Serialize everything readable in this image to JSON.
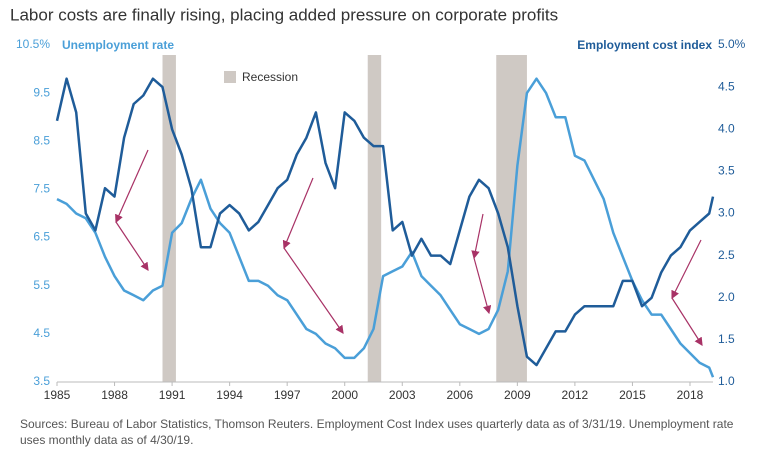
{
  "chart_data": {
    "type": "line",
    "title": "Labor costs are finally rising, placing added pressure on corporate profits",
    "y_label": "Unemployment rate",
    "y2_label": "Employment cost index",
    "legend_recession": "Recession",
    "source": "Sources: Bureau of Labor Statistics, Thomson Reuters. Employment Cost Index uses quarterly data as of 3/31/19. Unemployment rate uses monthly data as of 4/30/19.",
    "recession_color": "#cfc9c4",
    "recessions": [
      [
        1990.5,
        1991.2
      ],
      [
        2001.2,
        2001.9
      ],
      [
        2007.9,
        2009.5
      ]
    ],
    "x": [
      1985,
      1985.5,
      1986,
      1986.5,
      1987,
      1987.5,
      1988,
      1988.5,
      1989,
      1989.5,
      1990,
      1990.5,
      1991,
      1991.5,
      1992,
      1992.5,
      1993,
      1993.5,
      1994,
      1994.5,
      1995,
      1995.5,
      1996,
      1996.5,
      1997,
      1997.5,
      1998,
      1998.5,
      1999,
      1999.5,
      2000,
      2000.5,
      2001,
      2001.5,
      2002,
      2002.5,
      2003,
      2003.5,
      2004,
      2004.5,
      2005,
      2005.5,
      2006,
      2006.5,
      2007,
      2007.5,
      2008,
      2008.5,
      2009,
      2009.5,
      2010,
      2010.5,
      2011,
      2011.5,
      2012,
      2012.5,
      2013,
      2013.5,
      2014,
      2014.5,
      2015,
      2015.5,
      2016,
      2016.5,
      2017,
      2017.5,
      2018,
      2018.5,
      2019,
      2019.2
    ],
    "series": [
      {
        "name": "Unemployment rate",
        "color": "#4a9fd8",
        "values": [
          7.3,
          7.2,
          7.0,
          6.9,
          6.6,
          6.1,
          5.7,
          5.4,
          5.3,
          5.2,
          5.4,
          5.5,
          6.6,
          6.8,
          7.3,
          7.7,
          7.1,
          6.8,
          6.6,
          6.1,
          5.6,
          5.6,
          5.5,
          5.3,
          5.2,
          4.9,
          4.6,
          4.5,
          4.3,
          4.2,
          4.0,
          4.0,
          4.2,
          4.6,
          5.7,
          5.8,
          5.9,
          6.2,
          5.7,
          5.5,
          5.3,
          5.0,
          4.7,
          4.6,
          4.5,
          4.6,
          5.0,
          5.8,
          8.0,
          9.5,
          9.8,
          9.5,
          9.0,
          9.0,
          8.2,
          8.1,
          7.7,
          7.3,
          6.6,
          6.1,
          5.6,
          5.2,
          4.9,
          4.9,
          4.6,
          4.3,
          4.1,
          3.9,
          3.8,
          3.6
        ]
      },
      {
        "name": "Employment cost index",
        "color": "#1f5c99",
        "axis": "y2",
        "values": [
          4.1,
          4.6,
          4.2,
          3.0,
          2.8,
          3.3,
          3.2,
          3.9,
          4.3,
          4.4,
          4.6,
          4.5,
          4.0,
          3.7,
          3.3,
          2.6,
          2.6,
          3.0,
          3.1,
          3.0,
          2.8,
          2.9,
          3.1,
          3.3,
          3.4,
          3.7,
          3.9,
          4.2,
          3.6,
          3.3,
          4.2,
          4.1,
          3.9,
          3.8,
          3.8,
          2.8,
          2.9,
          2.5,
          2.7,
          2.5,
          2.5,
          2.4,
          2.8,
          3.2,
          3.4,
          3.3,
          3.0,
          2.6,
          1.9,
          1.3,
          1.2,
          1.4,
          1.6,
          1.6,
          1.8,
          1.9,
          1.9,
          1.9,
          1.9,
          2.2,
          2.2,
          1.9,
          2.0,
          2.3,
          2.5,
          2.6,
          2.8,
          2.9,
          3.0,
          3.2
        ]
      }
    ],
    "xlim": [
      1985,
      2019.2
    ],
    "xticks": [
      1985,
      1988,
      1991,
      1994,
      1997,
      2000,
      2003,
      2006,
      2009,
      2012,
      2015,
      2018
    ],
    "ylim": [
      3.5,
      10.5
    ],
    "yticks": [
      3.5,
      4.5,
      5.5,
      6.5,
      7.5,
      8.5,
      9.5,
      {
        "value": 10.5,
        "label": "10.5%"
      }
    ],
    "y2lim": [
      1,
      5
    ],
    "y2ticks": [
      {
        "value": 1,
        "label": "1.0"
      },
      {
        "value": 1.5,
        "label": "1.5"
      },
      {
        "value": 2,
        "label": "2.0"
      },
      {
        "value": 2.5,
        "label": "2.5"
      },
      {
        "value": 3,
        "label": "3.0"
      },
      {
        "value": 3.5,
        "label": "3.5"
      },
      {
        "value": 4,
        "label": "4.0"
      },
      {
        "value": 4.5,
        "label": "4.5"
      },
      {
        "value": 5,
        "label": "5.0%"
      }
    ]
  }
}
